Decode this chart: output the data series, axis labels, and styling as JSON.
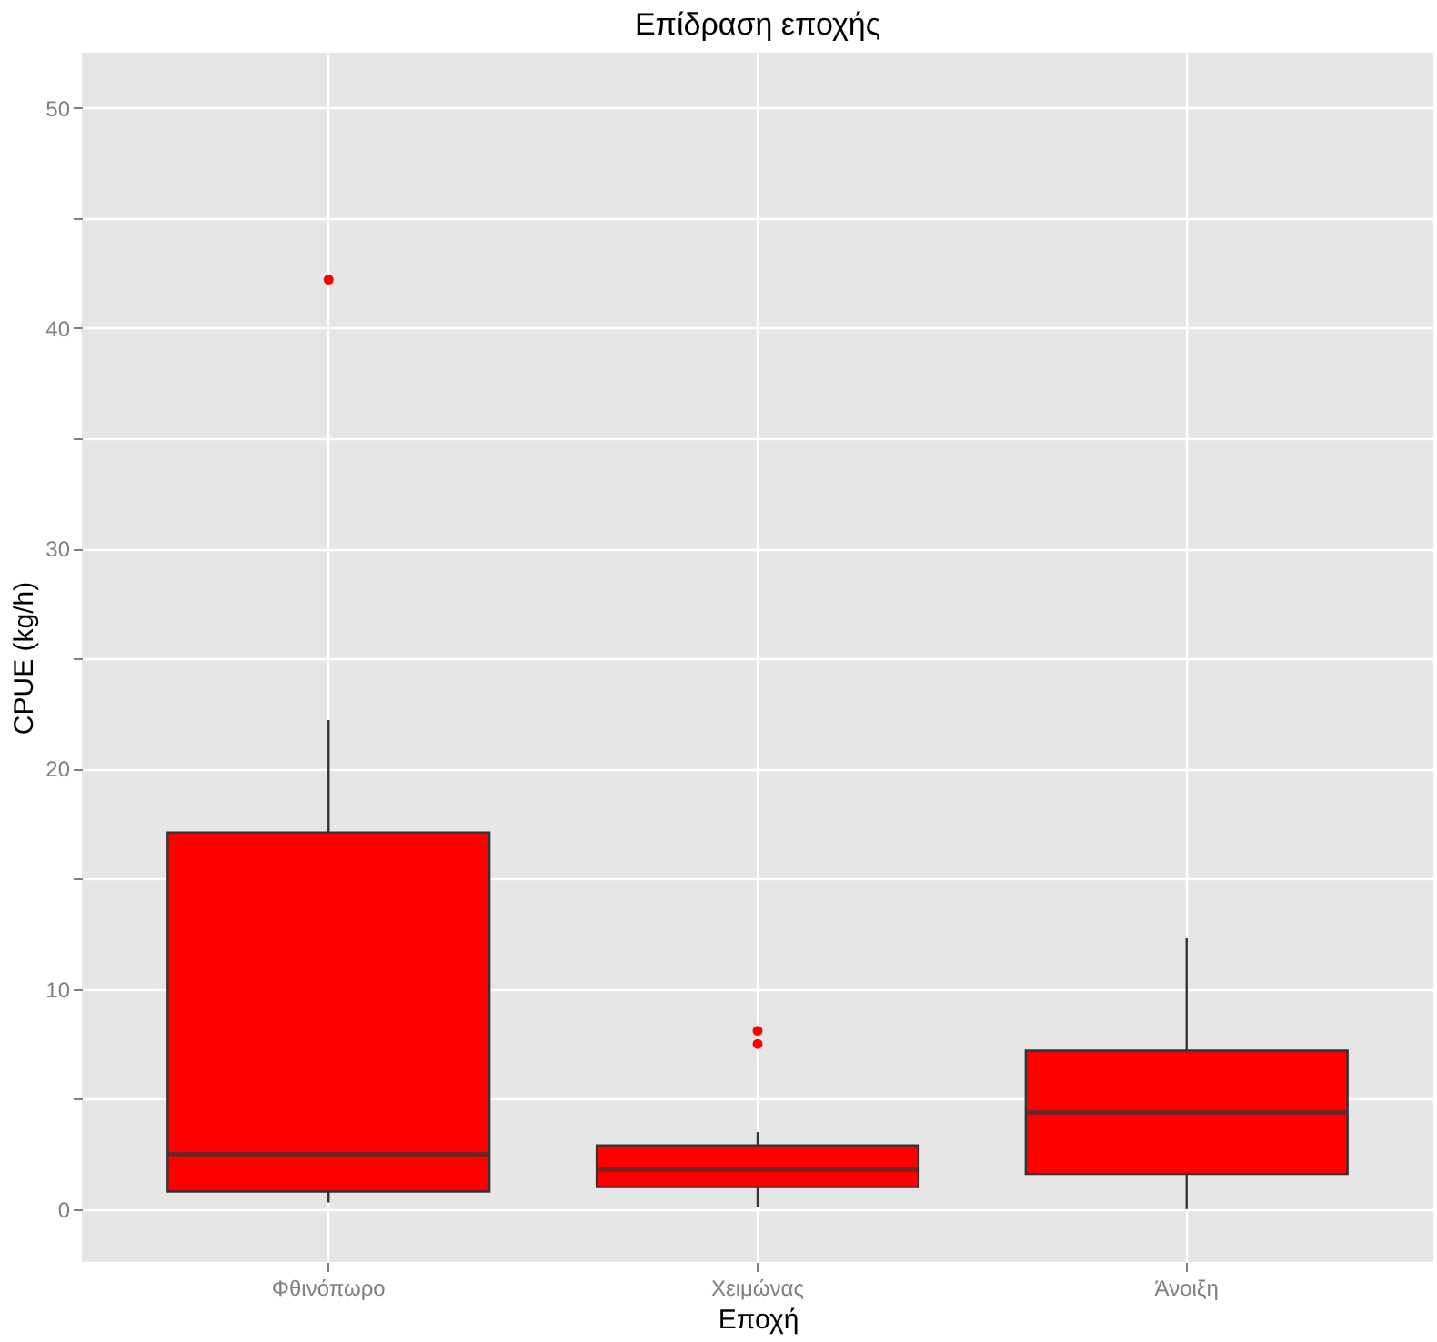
{
  "chart_data": {
    "type": "box",
    "title": "Επίδραση εποχής",
    "xlabel": "Εποχή",
    "ylabel": "CPUE (kg/h)",
    "categories": [
      "Φθινόπωρο",
      "Χειμώνας",
      "Άνοιξη"
    ],
    "boxes": [
      {
        "low": 0.3,
        "q1": 0.8,
        "median": 2.5,
        "q3": 17.1,
        "high": 22.2,
        "outliers": [
          42.2
        ]
      },
      {
        "low": 0.1,
        "q1": 1.0,
        "median": 1.8,
        "q3": 2.9,
        "high": 3.5,
        "outliers": [
          7.5,
          8.1
        ]
      },
      {
        "low": 0,
        "q1": 1.6,
        "median": 4.4,
        "q3": 7.2,
        "high": 12.3
      }
    ],
    "color": "#ff0000",
    "ylim": [
      -2.4,
      52.5
    ],
    "yticks": [
      0,
      {
        "value": 5,
        "label": null
      },
      10,
      {
        "value": 15,
        "label": null
      },
      20,
      {
        "value": 25,
        "label": null
      },
      30,
      {
        "value": 35,
        "label": null
      },
      40,
      {
        "value": 45,
        "label": null
      },
      50
    ],
    "grid": true
  }
}
